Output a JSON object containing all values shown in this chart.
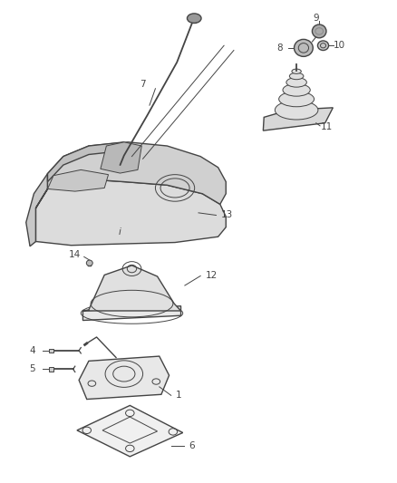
{
  "background_color": "#ffffff",
  "line_color": "#444444",
  "fig_width": 4.38,
  "fig_height": 5.33,
  "lw_main": 1.0,
  "lw_thin": 0.7
}
